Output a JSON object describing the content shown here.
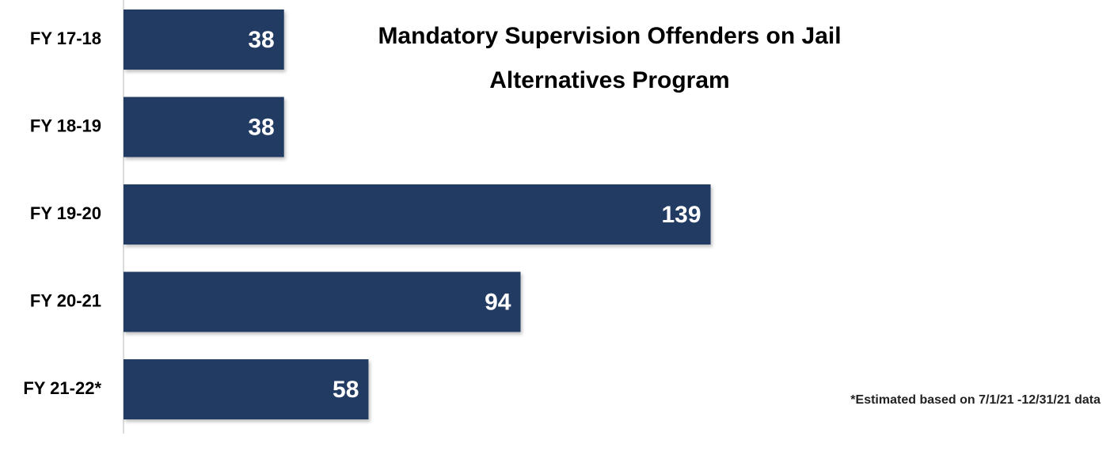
{
  "chart_data": {
    "type": "bar",
    "orientation": "horizontal",
    "title": "Mandatory Supervision Offenders on Jail Alternatives Program",
    "categories": [
      "FY 17-18",
      "FY 18-19",
      "FY 19-20",
      "FY 20-21",
      "FY 21-22*"
    ],
    "values": [
      38,
      38,
      139,
      94,
      58
    ],
    "color": "#243a64",
    "annotation": "*Estimated based on 7/1/21 -12/31/21 data"
  }
}
